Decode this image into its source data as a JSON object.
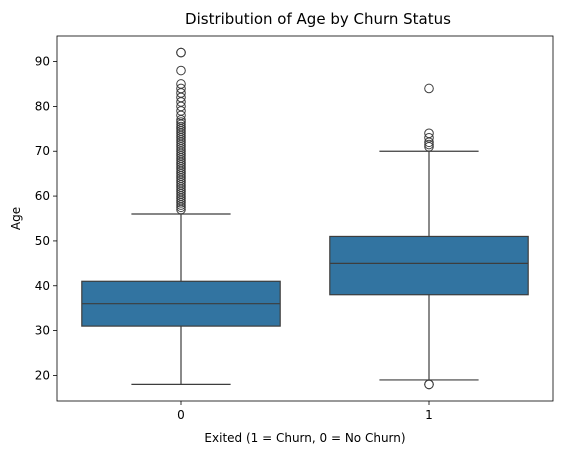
{
  "chart_data": {
    "type": "box",
    "title": "Distribution of Age by Churn Status",
    "xlabel": "Exited (1 = Churn, 0 = No Churn)",
    "ylabel": "Age",
    "categories": [
      "0",
      "1"
    ],
    "yticks": [
      20,
      30,
      40,
      50,
      60,
      70,
      80,
      90
    ],
    "ylim": [
      14.3,
      95.7
    ],
    "grid": false,
    "box_color": "#3274a1",
    "line_color": "#3d3d3d",
    "boxes": [
      {
        "category": "0",
        "whisker_low": 18,
        "q1": 31,
        "median": 36,
        "q3": 41,
        "whisker_high": 56,
        "outliers": [
          57,
          57.5,
          58,
          58.5,
          59,
          59.5,
          60,
          60.5,
          61,
          61.5,
          62,
          62.5,
          63,
          63.5,
          64,
          64.5,
          65,
          65.5,
          66,
          66.5,
          67,
          67.5,
          68,
          68.5,
          69,
          69.5,
          70,
          70.5,
          71,
          71.5,
          72,
          72.5,
          73,
          73.5,
          74,
          74.5,
          75,
          75.5,
          76,
          76.5,
          77,
          78,
          79,
          80,
          81,
          82,
          83,
          84,
          85,
          88,
          92,
          92
        ]
      },
      {
        "category": "1",
        "whisker_low": 19,
        "q1": 38,
        "median": 45,
        "q3": 51,
        "whisker_high": 70,
        "outliers": [
          18,
          18,
          71,
          71.5,
          72,
          73,
          74,
          84
        ]
      }
    ]
  }
}
